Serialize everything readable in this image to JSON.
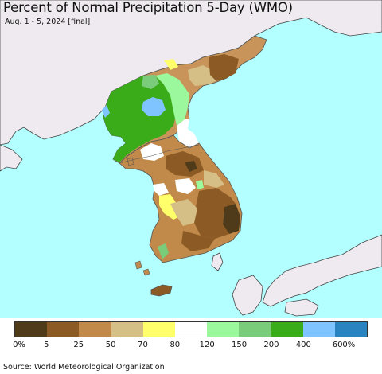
{
  "title": "Percent of Normal Precipitation 5-Day (WMO)",
  "subtitle": "Aug. 1 - 5, 2024 [final]",
  "source": "Source: World Meteorological Organization",
  "legend": {
    "colors": [
      "#4f3a1a",
      "#8c5a24",
      "#c18a4a",
      "#d5bf86",
      "#ffff6b",
      "#ffffff",
      "#9cf89c",
      "#7acc7a",
      "#3aac1a",
      "#80c4ff",
      "#2a84c0"
    ],
    "labels": [
      "0%",
      "5",
      "25",
      "50",
      "70",
      "80",
      "120",
      "150",
      "200",
      "400",
      "600%"
    ]
  },
  "map_colors": {
    "sea": "#b3ffff",
    "foreign_land": "#efeaef",
    "border": "#555555"
  }
}
